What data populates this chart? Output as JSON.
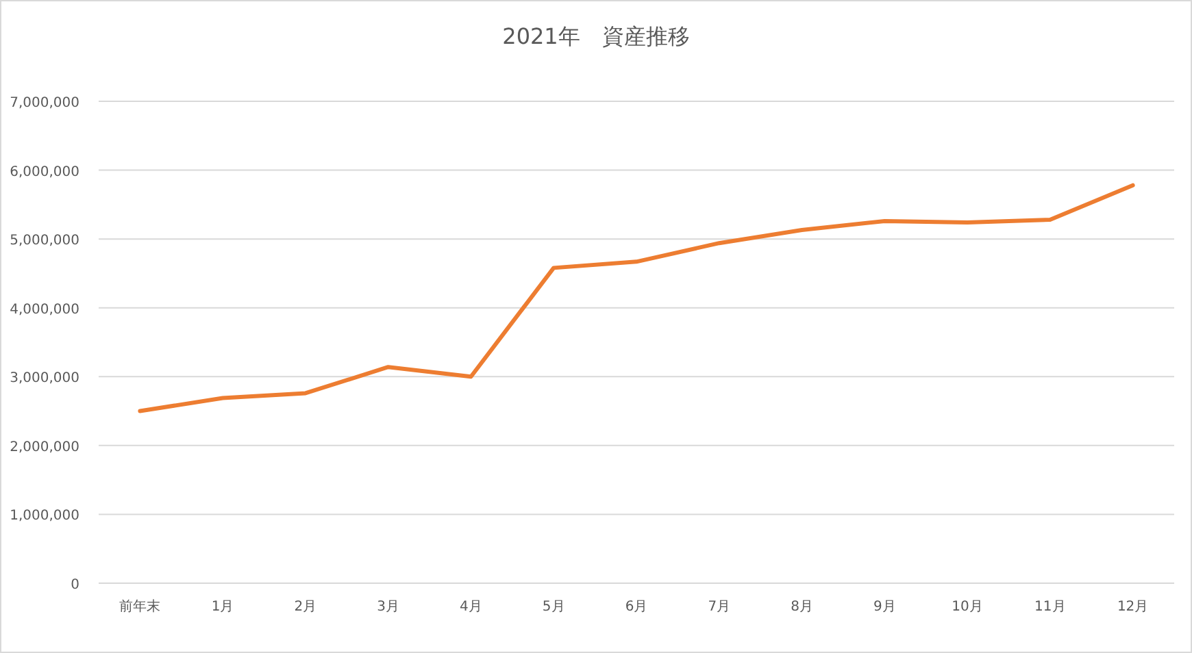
{
  "chart_data": {
    "type": "line",
    "title": "2021年　資産推移",
    "categories": [
      "前年末",
      "1月",
      "2月",
      "3月",
      "4月",
      "5月",
      "6月",
      "7月",
      "8月",
      "9月",
      "10月",
      "11月",
      "12月"
    ],
    "series": [
      {
        "color": "#ed7d31",
        "values": [
          2500000,
          2690000,
          2760000,
          3140000,
          3000000,
          4580000,
          4670000,
          4940000,
          5130000,
          5260000,
          5240000,
          5280000,
          5780000
        ]
      }
    ],
    "ylim": [
      0,
      7000000
    ],
    "yticks": [
      {
        "value": 0,
        "label": "0"
      },
      {
        "value": 1000000,
        "label": "1,000,000"
      },
      {
        "value": 2000000,
        "label": "2,000,000"
      },
      {
        "value": 3000000,
        "label": "3,000,000"
      },
      {
        "value": 4000000,
        "label": "4,000,000"
      },
      {
        "value": 5000000,
        "label": "5,000,000"
      },
      {
        "value": 6000000,
        "label": "6,000,000"
      },
      {
        "value": 7000000,
        "label": "7,000,000"
      }
    ],
    "grid": "y"
  }
}
